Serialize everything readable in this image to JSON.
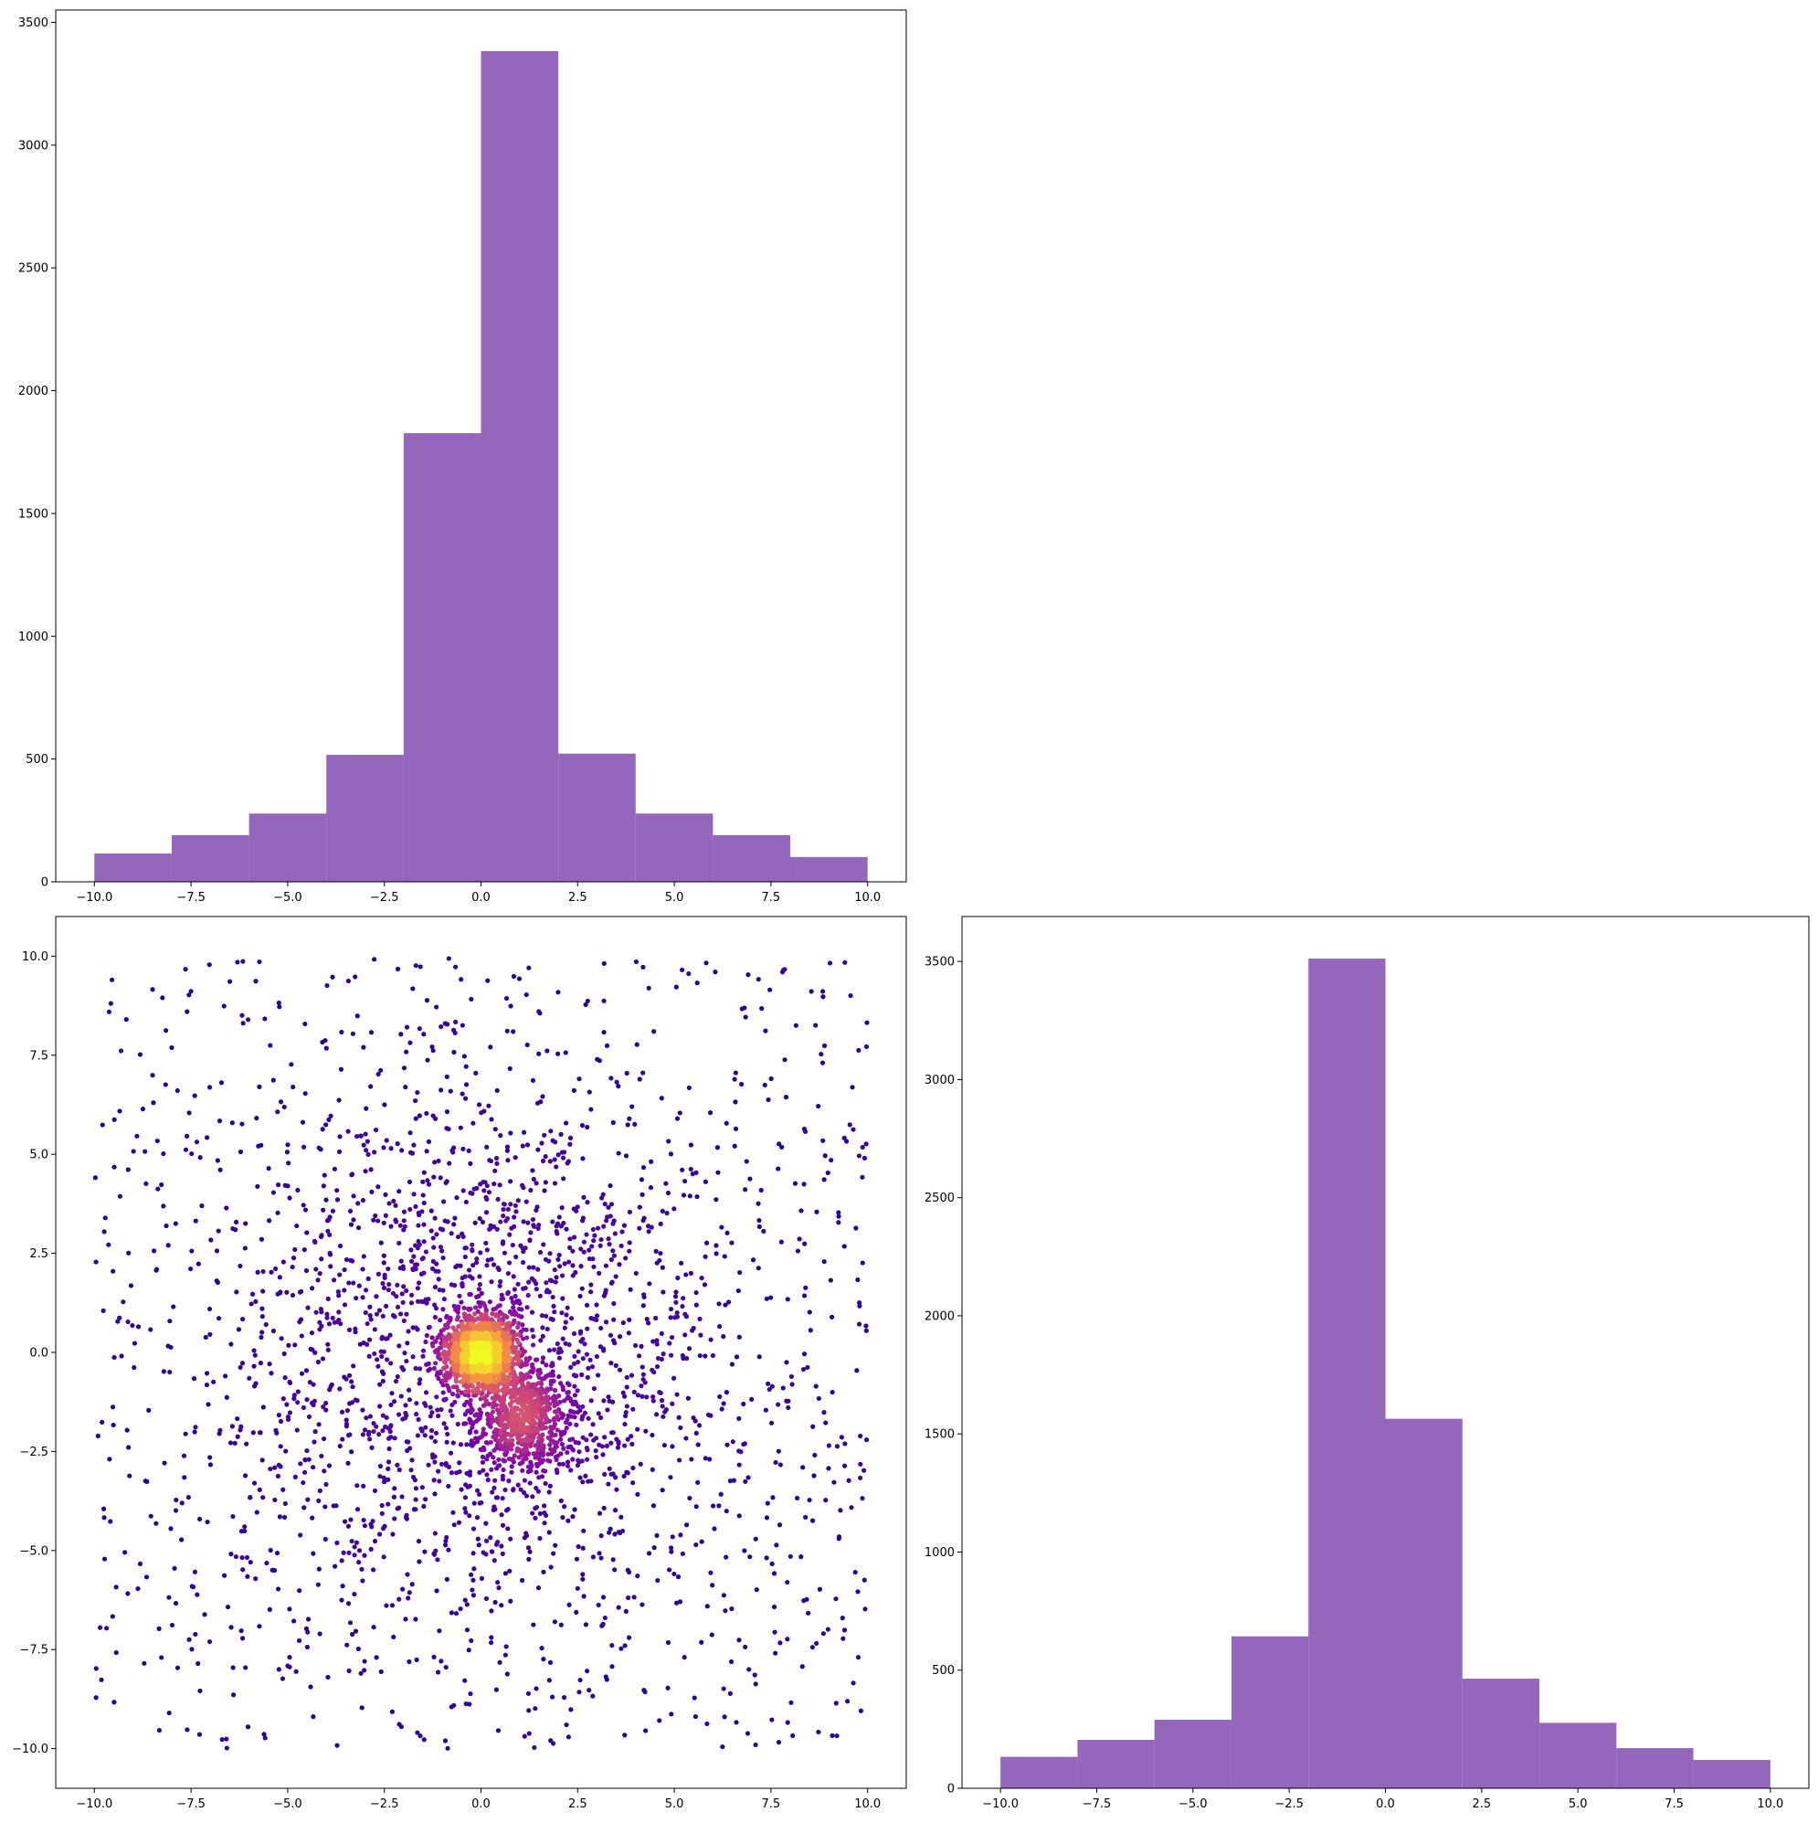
{
  "colors": {
    "bar_fill": "#9467bd",
    "scatter_colormap": "plasma"
  },
  "chart_data": [
    {
      "id": "hist-x",
      "position": "top-left",
      "type": "bar",
      "title": "",
      "xlabel": "",
      "ylabel": "",
      "bin_edges": [
        -10,
        -8,
        -6,
        -4,
        -2,
        0,
        2,
        4,
        6,
        8,
        10
      ],
      "values": [
        115,
        190,
        278,
        517,
        1827,
        3383,
        522,
        278,
        190,
        101
      ],
      "xlim": [
        -11,
        11
      ],
      "ylim": [
        0,
        3550
      ],
      "xticks": [
        -10,
        -7.5,
        -5,
        -2.5,
        0,
        2.5,
        5,
        7.5,
        10
      ],
      "xtick_labels": [
        "−10.0",
        "−7.5",
        "−5.0",
        "−2.5",
        "0.0",
        "2.5",
        "5.0",
        "7.5",
        "10.0"
      ],
      "yticks": [
        0,
        500,
        1000,
        1500,
        2000,
        2500,
        3000,
        3500
      ],
      "ytick_labels": [
        "0",
        "500",
        "1000",
        "1500",
        "2000",
        "2500",
        "3000",
        "3500"
      ]
    },
    {
      "id": "scatter-xy",
      "position": "bottom-left",
      "type": "scatter",
      "title": "",
      "xlabel": "",
      "ylabel": "",
      "description_of_data": "about 5000 points: a uniform background over [-10,10] x [-10,10], a broad cluster centred near (0,0), a dense core at (0,0) and a secondary dense cluster near (1,-1.6); colour encodes local point density",
      "clusters": [
        {
          "kind": "uniform",
          "count": 1000,
          "xrange": [
            -10,
            10
          ],
          "yrange": [
            -10,
            10
          ]
        },
        {
          "kind": "gaussian",
          "count": 1500,
          "center": [
            0,
            0
          ],
          "sd": 3.2
        },
        {
          "kind": "gaussian",
          "count": 1500,
          "center": [
            0,
            0
          ],
          "sd": 0.45
        },
        {
          "kind": "gaussian",
          "count": 700,
          "center": [
            1.1,
            -1.6
          ],
          "sd": 0.6
        }
      ],
      "xlim": [
        -11,
        11
      ],
      "ylim": [
        -11,
        11
      ],
      "xticks": [
        -10,
        -7.5,
        -5,
        -2.5,
        0,
        2.5,
        5,
        7.5,
        10
      ],
      "xtick_labels": [
        "−10.0",
        "−7.5",
        "−5.0",
        "−2.5",
        "0.0",
        "2.5",
        "5.0",
        "7.5",
        "10.0"
      ],
      "yticks": [
        -10,
        -7.5,
        -5,
        -2.5,
        0,
        2.5,
        5,
        7.5,
        10
      ],
      "ytick_labels": [
        "−10.0",
        "−7.5",
        "−5.0",
        "−2.5",
        "0.0",
        "2.5",
        "5.0",
        "7.5",
        "10.0"
      ]
    },
    {
      "id": "hist-y",
      "position": "bottom-right",
      "type": "bar",
      "title": "",
      "xlabel": "",
      "ylabel": "",
      "bin_edges": [
        -10,
        -8,
        -6,
        -4,
        -2,
        0,
        2,
        4,
        6,
        8,
        10
      ],
      "values": [
        133,
        205,
        290,
        643,
        3512,
        1564,
        464,
        277,
        170,
        120
      ],
      "xlim": [
        -11,
        11
      ],
      "ylim": [
        0,
        3690
      ],
      "xticks": [
        -10,
        -7.5,
        -5,
        -2.5,
        0,
        2.5,
        5,
        7.5,
        10
      ],
      "xtick_labels": [
        "−10.0",
        "−7.5",
        "−5.0",
        "−2.5",
        "0.0",
        "2.5",
        "5.0",
        "7.5",
        "10.0"
      ],
      "yticks": [
        0,
        500,
        1000,
        1500,
        2000,
        2500,
        3000,
        3500
      ],
      "ytick_labels": [
        "0",
        "500",
        "1000",
        "1500",
        "2000",
        "2500",
        "3000",
        "3500"
      ]
    }
  ]
}
